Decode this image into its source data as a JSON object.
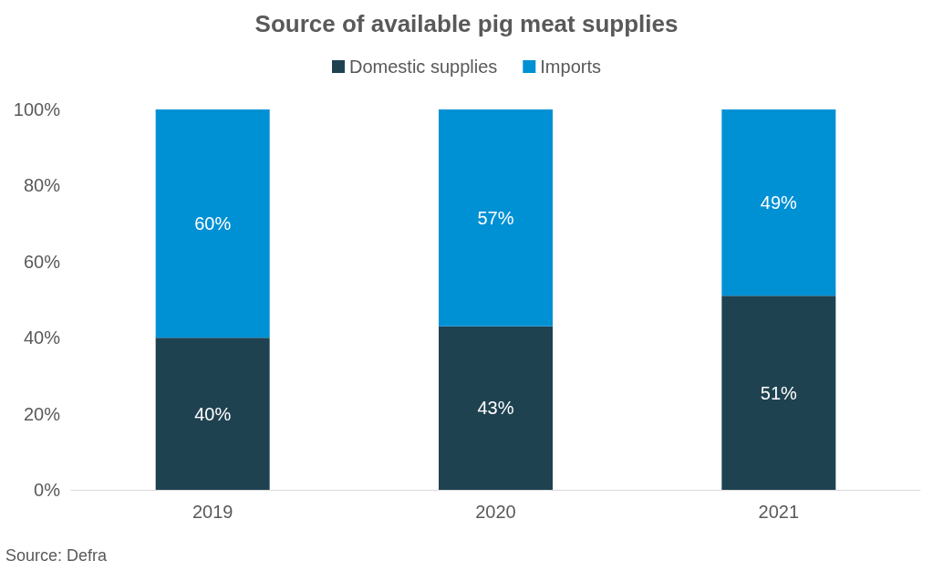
{
  "chart_data": {
    "type": "bar",
    "title": "Source of available pig meat supplies",
    "categories": [
      "2019",
      "2020",
      "2021"
    ],
    "stacked": true,
    "series": [
      {
        "name": "Domestic supplies",
        "color": "#1f4251",
        "values": [
          40,
          43,
          51
        ],
        "value_labels": [
          "40%",
          "43%",
          "51%"
        ]
      },
      {
        "name": "Imports",
        "color": "#0090d4",
        "values": [
          60,
          57,
          49
        ],
        "value_labels": [
          "60%",
          "57%",
          "49%"
        ]
      }
    ],
    "ylim": [
      0,
      100
    ],
    "yticks": [
      {
        "value": 0,
        "label": "0%"
      },
      {
        "value": 20,
        "label": "20%"
      },
      {
        "value": 40,
        "label": "40%"
      },
      {
        "value": 60,
        "label": "60%"
      },
      {
        "value": 80,
        "label": "80%"
      },
      {
        "value": 100,
        "label": "100%"
      }
    ],
    "grid": false,
    "legend": "top",
    "annotations": [
      "Source: Defra"
    ]
  }
}
